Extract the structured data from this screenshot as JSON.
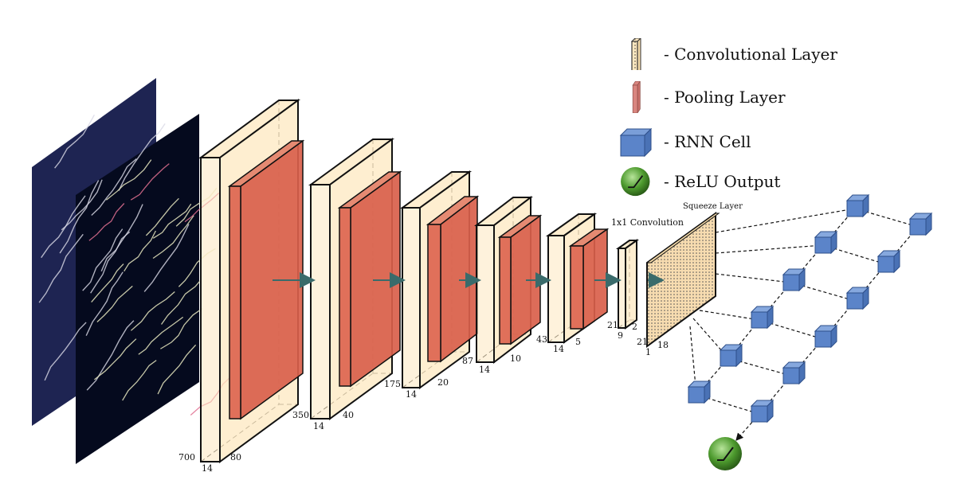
{
  "colors": {
    "conv_fill": "#fde8c0",
    "pool_fill": "#e0705a",
    "pool_legend": "#d9857f",
    "rnn_fill": "#5b84c9",
    "relu_fill": "#4d9a2e",
    "arrow": "#3a6b6b",
    "input_back": "#1e2452",
    "input_front": "#050a1e"
  },
  "layers": [
    {
      "height_label": "700",
      "depth_label": "14",
      "width_label": "80"
    },
    {
      "height_label": "350",
      "depth_label": "14",
      "width_label": "40"
    },
    {
      "height_label": "175",
      "depth_label": "14",
      "width_label": "20"
    },
    {
      "height_label": "87",
      "depth_label": "14",
      "width_label": "10"
    },
    {
      "height_label": "43",
      "depth_label": "14",
      "width_label": "5"
    },
    {
      "height_label": "21",
      "depth_label": "9",
      "width_label": "2",
      "title": "1x1 Convolution"
    },
    {
      "height_label": "21",
      "depth_label": "1",
      "width_label": "18",
      "title": "Squeeze Layer"
    }
  ],
  "legend": [
    {
      "icon": "conv-layer-icon",
      "label": "- Convolutional Layer"
    },
    {
      "icon": "pooling-layer-icon",
      "label": "- Pooling Layer"
    },
    {
      "icon": "rnn-cell-icon",
      "label": "- RNN Cell"
    },
    {
      "icon": "relu-output-icon",
      "label": "- ReLU Output"
    }
  ]
}
